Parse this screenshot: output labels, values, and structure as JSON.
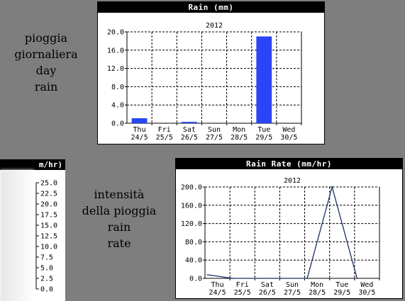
{
  "left_labels": {
    "top": [
      "pioggia",
      "giornaliera",
      "",
      "day",
      "rain"
    ],
    "bottom": [
      "intensità",
      "della pioggia",
      "",
      "rain",
      "rate"
    ]
  },
  "partial_panel": {
    "title_fragment": "m/hr)",
    "ticks": [
      "25.0",
      "22.5",
      "20.0",
      "17.5",
      "15.0",
      "12.5",
      "10.0",
      "7.5",
      "5.0",
      "2.5",
      "0.0"
    ]
  },
  "chart_data": [
    {
      "type": "bar",
      "title": "Rain (mm)",
      "subtitle": "2012",
      "categories": [
        [
          "Thu",
          "24/5"
        ],
        [
          "Fri",
          "25/5"
        ],
        [
          "Sat",
          "26/5"
        ],
        [
          "Sun",
          "27/5"
        ],
        [
          "Mon",
          "28/5"
        ],
        [
          "Tue",
          "29/5"
        ],
        [
          "Wed",
          "30/5"
        ]
      ],
      "values": [
        1.1,
        0,
        0.3,
        0,
        0,
        19.0,
        0
      ],
      "ylim": [
        0,
        20
      ],
      "yticks": [
        "0.0",
        "4.0",
        "8.0",
        "12.0",
        "16.0",
        "20.0"
      ],
      "color": "#2a45f5",
      "grid": true
    },
    {
      "type": "line",
      "title": "Rain Rate (mm/hr)",
      "subtitle": "2012",
      "categories": [
        [
          "Thu",
          "24/5"
        ],
        [
          "Fri",
          "25/5"
        ],
        [
          "Sat",
          "26/5"
        ],
        [
          "Sun",
          "27/5"
        ],
        [
          "Mon",
          "28/5"
        ],
        [
          "Tue",
          "29/5"
        ],
        [
          "Wed",
          "30/5"
        ]
      ],
      "values": [
        8,
        0,
        0,
        0,
        0,
        200,
        0
      ],
      "ylim": [
        0,
        200
      ],
      "yticks": [
        "0.0",
        "40.0",
        "80.0",
        "120.0",
        "160.0",
        "200.0"
      ],
      "color": "#1a2d6b",
      "grid": true
    }
  ]
}
